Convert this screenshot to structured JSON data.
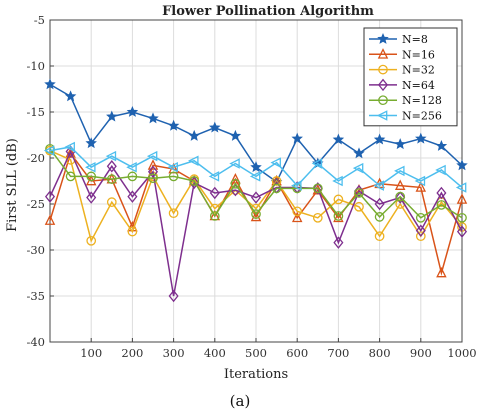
{
  "caption": "(a)",
  "chart_data": {
    "type": "line",
    "title": "Flower Pollination Algorithm",
    "xlabel": "Iterations",
    "ylabel": "First SLL (dB)",
    "xlim": [
      0,
      1000
    ],
    "ylim": [
      -40,
      -5
    ],
    "xticks": [
      100,
      200,
      300,
      400,
      500,
      600,
      700,
      800,
      900,
      1000
    ],
    "yticks": [
      -5,
      -10,
      -15,
      -20,
      -25,
      -30,
      -35,
      -40
    ],
    "grid": true,
    "legend_position": "top-right",
    "x": [
      0,
      50,
      100,
      150,
      200,
      250,
      300,
      350,
      400,
      450,
      500,
      550,
      600,
      650,
      700,
      750,
      800,
      850,
      900,
      950,
      1000
    ],
    "series": [
      {
        "name": "N=8",
        "color": "#1f62b0",
        "marker": "star",
        "values": [
          -12,
          -13.3,
          -18.4,
          -15.5,
          -15,
          -15.7,
          -16.5,
          -17.6,
          -16.7,
          -17.6,
          -21,
          -22.6,
          -17.9,
          -20.6,
          -18,
          -19.5,
          -18,
          -18.5,
          -17.9,
          -18.7,
          -20.8
        ]
      },
      {
        "name": "N=16",
        "color": "#d95319",
        "marker": "triangle-up",
        "values": [
          -26.8,
          -19.5,
          -22.5,
          -22.3,
          -27.5,
          -20.8,
          -21.2,
          -22.5,
          -26.3,
          -22.3,
          -26.4,
          -22.5,
          -26.5,
          -23.5,
          -26.5,
          -23.5,
          -22.8,
          -23,
          -23.2,
          -32.5,
          -24.5
        ]
      },
      {
        "name": "N=32",
        "color": "#edb120",
        "marker": "circle",
        "values": [
          -19.2,
          -20.2,
          -29,
          -24.8,
          -28,
          -22,
          -26,
          -22.3,
          -25.5,
          -23.5,
          -25.5,
          -22.5,
          -25.8,
          -26.5,
          -24.5,
          -25.3,
          -28.5,
          -25,
          -28.5,
          -24.8,
          -27.5
        ]
      },
      {
        "name": "N=64",
        "color": "#7e2f8e",
        "marker": "diamond",
        "values": [
          -24.2,
          -19.3,
          -24.3,
          -20.9,
          -24.2,
          -21.5,
          -35,
          -22.7,
          -23.8,
          -23.5,
          -24.3,
          -23.2,
          -23.2,
          -23.3,
          -29.2,
          -23.6,
          -25,
          -24.3,
          -27.9,
          -23.8,
          -28
        ]
      },
      {
        "name": "N=128",
        "color": "#77ac30",
        "marker": "circle",
        "values": [
          -19,
          -22,
          -22,
          -22.3,
          -22,
          -22.2,
          -22,
          -22.5,
          -26.3,
          -22.8,
          -26.1,
          -23.3,
          -23.3,
          -23.3,
          -26.3,
          -23.8,
          -26.4,
          -24.2,
          -26.5,
          -25.1,
          -26.5
        ]
      },
      {
        "name": "N=256",
        "color": "#4dbeee",
        "marker": "triangle-left",
        "values": [
          -19.2,
          -18.8,
          -21,
          -19.8,
          -21,
          -19.8,
          -21,
          -20.3,
          -22,
          -20.6,
          -22,
          -20.5,
          -23,
          -20.6,
          -22.5,
          -21.1,
          -23,
          -21.4,
          -22.5,
          -21.3,
          -23.2
        ]
      }
    ]
  }
}
